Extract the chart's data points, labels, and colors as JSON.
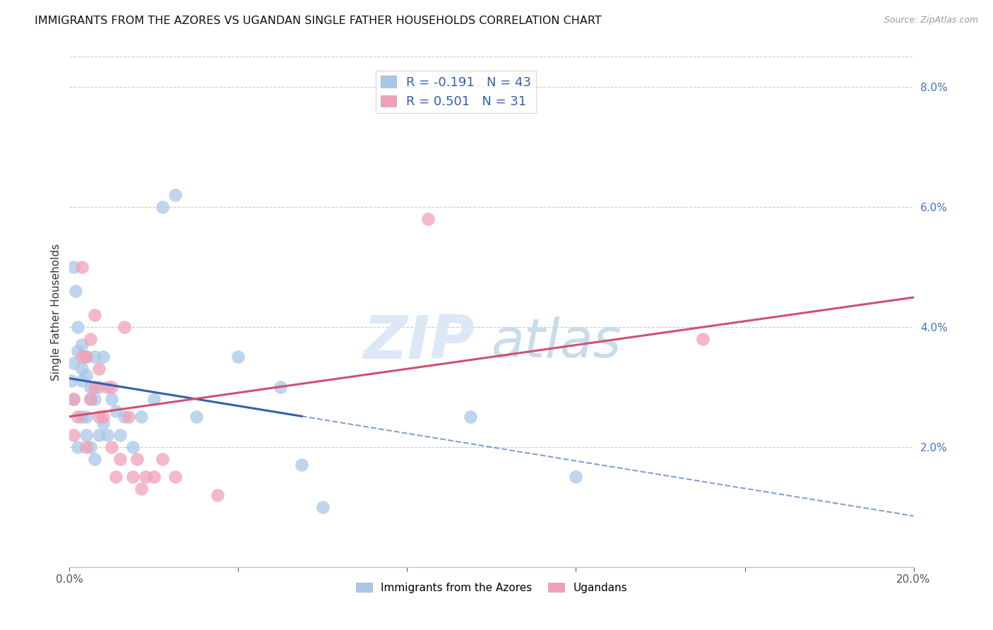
{
  "title": "IMMIGRANTS FROM THE AZORES VS UGANDAN SINGLE FATHER HOUSEHOLDS CORRELATION CHART",
  "source": "Source: ZipAtlas.com",
  "ylabel": "Single Father Households",
  "xlim": [
    0.0,
    0.2
  ],
  "ylim": [
    0.0,
    0.085
  ],
  "yticks": [
    0.02,
    0.04,
    0.06,
    0.08
  ],
  "ytick_labels": [
    "2.0%",
    "4.0%",
    "6.0%",
    "8.0%"
  ],
  "legend_r_blue": "-0.191",
  "legend_n_blue": "43",
  "legend_r_pink": "0.501",
  "legend_n_pink": "31",
  "blue_color": "#a8c8e8",
  "pink_color": "#f0a0b8",
  "blue_line_color": "#3060b0",
  "pink_line_color": "#d05070",
  "watermark_zip": "ZIP",
  "watermark_atlas": "atlas",
  "legend_label_blue": "Immigrants from the Azores",
  "legend_label_pink": "Ugandans",
  "blue_x": [
    0.0005,
    0.001,
    0.001,
    0.001,
    0.0015,
    0.002,
    0.002,
    0.002,
    0.003,
    0.003,
    0.003,
    0.003,
    0.004,
    0.004,
    0.004,
    0.004,
    0.005,
    0.005,
    0.005,
    0.006,
    0.006,
    0.006,
    0.007,
    0.007,
    0.008,
    0.008,
    0.009,
    0.01,
    0.011,
    0.012,
    0.013,
    0.015,
    0.017,
    0.02,
    0.022,
    0.025,
    0.03,
    0.04,
    0.05,
    0.055,
    0.06,
    0.095,
    0.12
  ],
  "blue_y": [
    0.031,
    0.034,
    0.028,
    0.05,
    0.046,
    0.036,
    0.04,
    0.02,
    0.037,
    0.033,
    0.031,
    0.025,
    0.035,
    0.032,
    0.025,
    0.022,
    0.03,
    0.028,
    0.02,
    0.035,
    0.028,
    0.018,
    0.03,
    0.022,
    0.035,
    0.024,
    0.022,
    0.028,
    0.026,
    0.022,
    0.025,
    0.02,
    0.025,
    0.028,
    0.06,
    0.062,
    0.025,
    0.035,
    0.03,
    0.017,
    0.01,
    0.025,
    0.015
  ],
  "pink_x": [
    0.001,
    0.001,
    0.002,
    0.003,
    0.003,
    0.004,
    0.004,
    0.005,
    0.005,
    0.006,
    0.006,
    0.007,
    0.007,
    0.008,
    0.009,
    0.01,
    0.01,
    0.011,
    0.012,
    0.013,
    0.014,
    0.015,
    0.016,
    0.017,
    0.018,
    0.02,
    0.022,
    0.025,
    0.035,
    0.085,
    0.15
  ],
  "pink_y": [
    0.028,
    0.022,
    0.025,
    0.05,
    0.035,
    0.035,
    0.02,
    0.038,
    0.028,
    0.042,
    0.03,
    0.033,
    0.025,
    0.025,
    0.03,
    0.03,
    0.02,
    0.015,
    0.018,
    0.04,
    0.025,
    0.015,
    0.018,
    0.013,
    0.015,
    0.015,
    0.018,
    0.015,
    0.012,
    0.058,
    0.038
  ]
}
